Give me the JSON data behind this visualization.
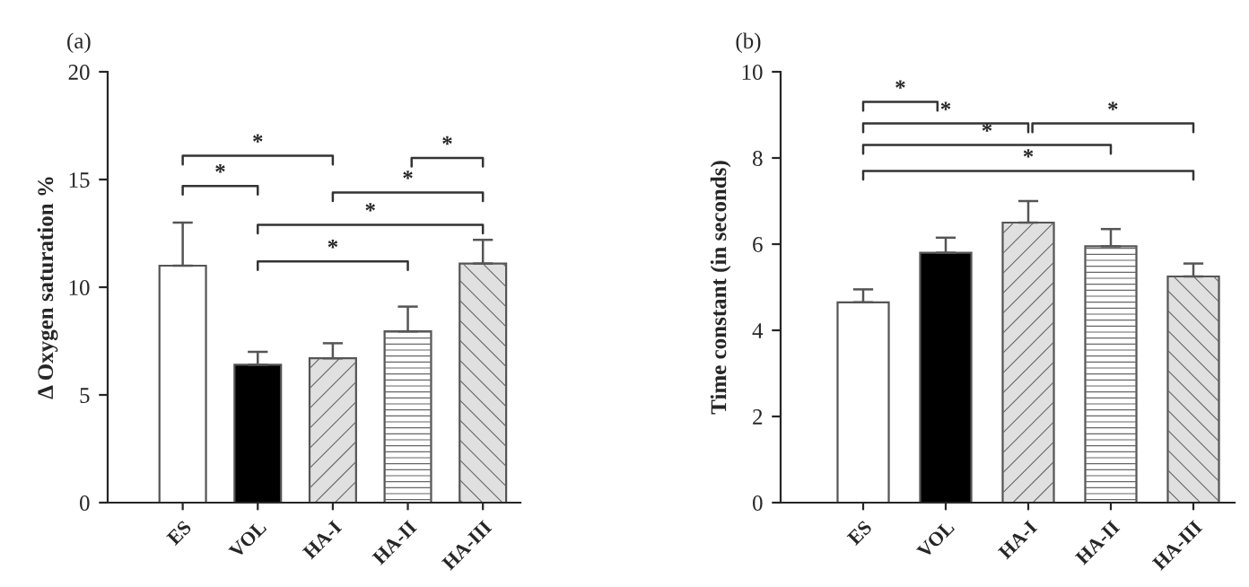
{
  "chart_data": [
    {
      "type": "bar",
      "title": "(a)",
      "ylabel": "Δ Oxygen saturation %",
      "categories": [
        "ES",
        "VOL",
        "HA-I",
        "HA-II",
        "HA-III"
      ],
      "values": [
        11.0,
        6.4,
        6.7,
        7.95,
        11.1
      ],
      "colors": [
        "#ffffff",
        "#000000",
        "#e0e0e0",
        "#ffffff",
        "#e0e0e0"
      ],
      "errors": [
        [
          11.0,
          13.0
        ],
        [
          6.4,
          7.0
        ],
        [
          6.7,
          7.4
        ],
        [
          7.95,
          9.1
        ],
        [
          11.1,
          12.2
        ]
      ],
      "ylim": [
        0,
        20
      ],
      "yticks": [
        0,
        5,
        10,
        15,
        20
      ],
      "grid": false,
      "legend": false,
      "annotations": [
        "*",
        "*",
        "*",
        "*",
        "*",
        "*"
      ]
    },
    {
      "type": "bar",
      "title": "(b)",
      "ylabel": "Time constant (in seconds)",
      "categories": [
        "ES",
        "VOL",
        "HA-I",
        "HA-II",
        "HA-III"
      ],
      "values": [
        4.65,
        5.8,
        6.5,
        5.95,
        5.25
      ],
      "colors": [
        "#ffffff",
        "#000000",
        "#e0e0e0",
        "#ffffff",
        "#e0e0e0"
      ],
      "errors": [
        [
          4.65,
          4.95
        ],
        [
          5.8,
          6.15
        ],
        [
          6.5,
          7.0
        ],
        [
          5.95,
          6.35
        ],
        [
          5.25,
          5.55
        ]
      ],
      "ylim": [
        0,
        10
      ],
      "yticks": [
        0,
        2,
        4,
        6,
        8,
        10
      ],
      "grid": false,
      "legend": false,
      "annotations": [
        "*",
        "*",
        "*",
        "*",
        "*"
      ]
    }
  ]
}
